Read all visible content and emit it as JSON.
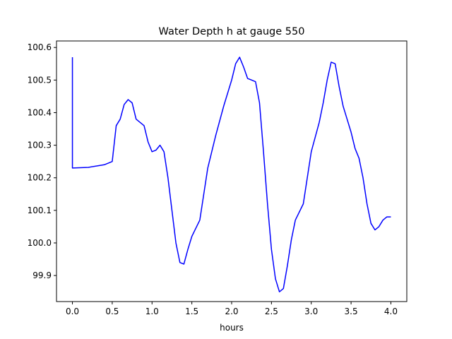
{
  "chart_data": {
    "type": "line",
    "title": "Water Depth h at gauge 550",
    "xlabel": "hours",
    "ylabel": "",
    "xlim": [
      -0.2,
      4.2
    ],
    "ylim": [
      99.82,
      100.62
    ],
    "x_ticks": [
      0.0,
      0.5,
      1.0,
      1.5,
      2.0,
      2.5,
      3.0,
      3.5,
      4.0
    ],
    "x_tick_labels": [
      "0.0",
      "0.5",
      "1.0",
      "1.5",
      "2.0",
      "2.5",
      "3.0",
      "3.5",
      "4.0"
    ],
    "y_ticks": [
      99.9,
      100.0,
      100.1,
      100.2,
      100.3,
      100.4,
      100.5,
      100.6
    ],
    "y_tick_labels": [
      "99.9",
      "100.0",
      "100.1",
      "100.2",
      "100.3",
      "100.4",
      "100.5",
      "100.6"
    ],
    "grid": false,
    "legend": "none",
    "series": [
      {
        "color": "#0000ff",
        "x": [
          0.0,
          0.0,
          0.2,
          0.4,
          0.5,
          0.55,
          0.6,
          0.65,
          0.7,
          0.75,
          0.8,
          0.85,
          0.9,
          0.95,
          1.0,
          1.05,
          1.1,
          1.15,
          1.2,
          1.25,
          1.3,
          1.35,
          1.4,
          1.45,
          1.5,
          1.55,
          1.6,
          1.65,
          1.7,
          1.8,
          1.9,
          2.0,
          2.05,
          2.1,
          2.15,
          2.2,
          2.25,
          2.3,
          2.35,
          2.4,
          2.45,
          2.5,
          2.55,
          2.6,
          2.65,
          2.7,
          2.75,
          2.8,
          2.9,
          3.0,
          3.1,
          3.15,
          3.2,
          3.25,
          3.3,
          3.35,
          3.4,
          3.45,
          3.5,
          3.55,
          3.6,
          3.65,
          3.7,
          3.75,
          3.8,
          3.85,
          3.9,
          3.95,
          4.0
        ],
        "y": [
          100.57,
          100.23,
          100.232,
          100.24,
          100.25,
          100.36,
          100.38,
          100.425,
          100.44,
          100.43,
          100.38,
          100.37,
          100.36,
          100.31,
          100.28,
          100.285,
          100.3,
          100.28,
          100.2,
          100.1,
          100.0,
          99.94,
          99.935,
          99.98,
          100.02,
          100.045,
          100.07,
          100.15,
          100.23,
          100.33,
          100.42,
          100.5,
          100.55,
          100.57,
          100.54,
          100.505,
          100.5,
          100.495,
          100.43,
          100.28,
          100.12,
          99.98,
          99.89,
          99.85,
          99.86,
          99.93,
          100.01,
          100.07,
          100.12,
          100.28,
          100.37,
          100.43,
          100.5,
          100.555,
          100.55,
          100.48,
          100.42,
          100.38,
          100.34,
          100.29,
          100.26,
          100.2,
          100.12,
          100.06,
          100.04,
          100.05,
          100.07,
          100.08,
          100.08
        ]
      }
    ]
  }
}
